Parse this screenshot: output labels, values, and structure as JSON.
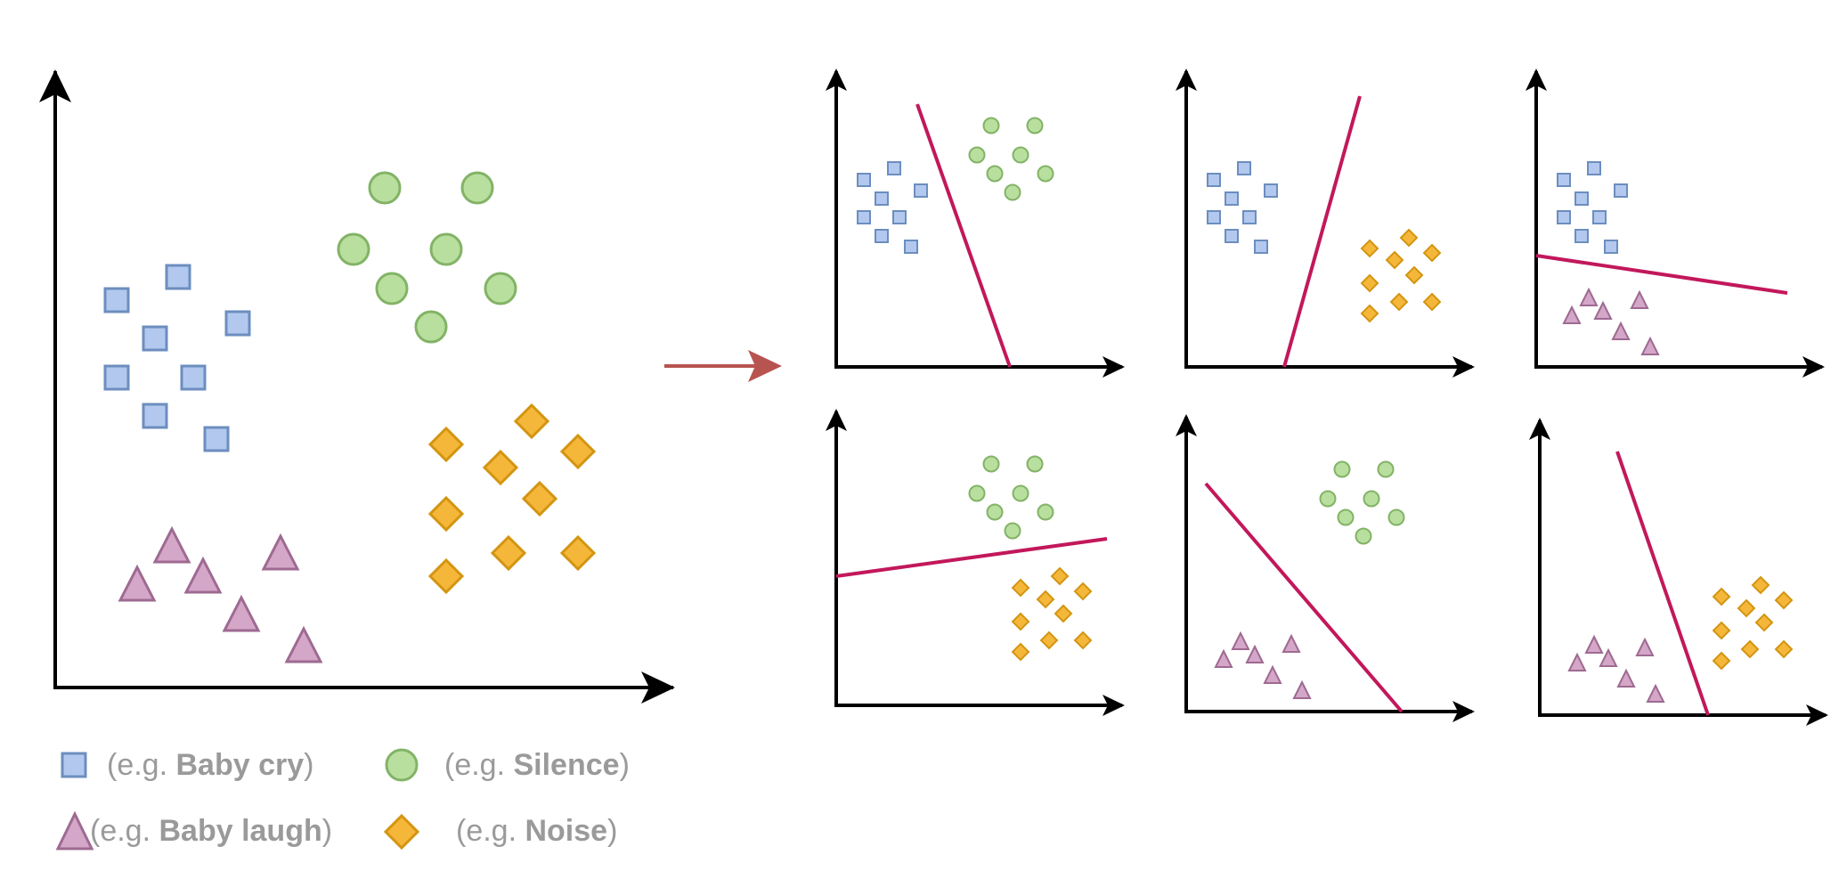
{
  "colors": {
    "square_fill": "#b3c8ee",
    "square_stroke": "#6c8ebf",
    "circle_fill": "#b9df9f",
    "circle_stroke": "#82b366",
    "triangle_fill": "#d4a6c8",
    "triangle_stroke": "#9e6a91",
    "diamond_fill": "#f5b73a",
    "diamond_stroke": "#d39511",
    "boundary": "#c2185b",
    "arrow": "#b85450",
    "axis": "#000000",
    "legend_text": "#9a9a9a"
  },
  "icons": {
    "square": "square-icon",
    "circle": "circle-icon",
    "triangle": "triangle-icon",
    "diamond": "diamond-icon"
  },
  "legend": [
    {
      "shape": "square",
      "prefix": "(e.g. ",
      "name": "Baby cry",
      "suffix": ")"
    },
    {
      "shape": "circle",
      "prefix": "(e.g. ",
      "name": "Silence",
      "suffix": ")"
    },
    {
      "shape": "triangle",
      "prefix": "(e.g. ",
      "name": "Baby laugh",
      "suffix": ")"
    },
    {
      "shape": "diamond",
      "prefix": "(e.g. ",
      "name": "Noise",
      "suffix": ")"
    }
  ]
}
